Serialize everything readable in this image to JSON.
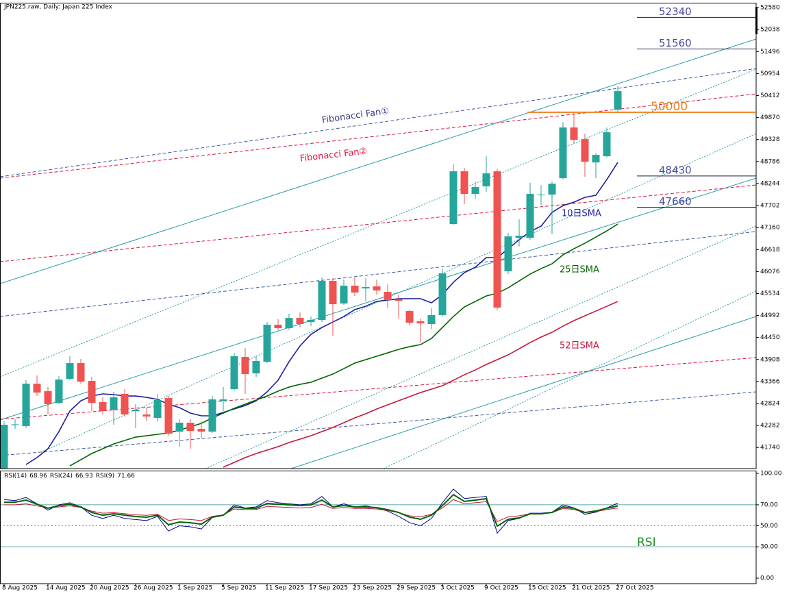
{
  "chart_data": [
    {
      "type": "candlestick",
      "title": "JPN225.raw, Daily:  Japan 225 Index",
      "categories": [
        "8 Aug 2025",
        null,
        null,
        null,
        "14 Aug 2025",
        null,
        null,
        null,
        "20 Aug 2025",
        null,
        null,
        null,
        "26 Aug 2025",
        null,
        null,
        null,
        "1 Sep 2025",
        null,
        null,
        null,
        "5 Sep 2025",
        null,
        null,
        null,
        "11 Sep 2025",
        null,
        null,
        null,
        "17 Sep 2025",
        null,
        null,
        null,
        "23 Sep 2025",
        null,
        null,
        null,
        "29 Sep 2025",
        null,
        null,
        null,
        "3 Oct 2025",
        null,
        null,
        null,
        "9 Oct 2025",
        null,
        null,
        null,
        "15 Oct 2025",
        null,
        null,
        null,
        "21 Oct 2025",
        null,
        null,
        null,
        "27 Oct 2025"
      ],
      "open": [
        41150,
        42290,
        42266,
        43313,
        43127,
        42840,
        43431,
        43819,
        43380,
        42857,
        42671,
        43060,
        42638,
        42553,
        42469,
        42958,
        42131,
        42351,
        42199,
        42131,
        42891,
        43178,
        43971,
        43566,
        43853,
        44765,
        44680,
        44933,
        44832,
        44883,
        45845,
        45288,
        45727,
        45659,
        45710,
        45575,
        45389,
        45102,
        44849,
        44782,
        45001,
        47246,
        48546,
        47989,
        48175,
        48546,
        46081,
        46908,
        46908,
        47955,
        47972,
        48377,
        49626,
        49339,
        48765,
        48917,
        50065
      ],
      "high": [
        42385,
        42435,
        43397,
        43515,
        43228,
        43498,
        43988,
        43920,
        43482,
        42975,
        43110,
        43178,
        42806,
        42722,
        43060,
        43009,
        42435,
        42435,
        42385,
        43009,
        43228,
        44072,
        44191,
        43988,
        44832,
        44900,
        45035,
        45068,
        44967,
        45929,
        45912,
        45878,
        45929,
        45912,
        45878,
        45760,
        45507,
        45136,
        44916,
        45170,
        46149,
        48715,
        48630,
        48293,
        48917,
        48613,
        47027,
        47364,
        48259,
        48208,
        48293,
        49761,
        49981,
        49474,
        49001,
        49626,
        50656
      ],
      "low": [
        41050,
        42200,
        42216,
        43009,
        42553,
        42806,
        43397,
        43313,
        42638,
        42553,
        42300,
        42503,
        42216,
        42385,
        42385,
        42030,
        41760,
        41709,
        41963,
        42098,
        42638,
        43144,
        43060,
        43482,
        43819,
        44630,
        44630,
        44697,
        44731,
        44832,
        44495,
        45254,
        45474,
        45338,
        45507,
        45170,
        44916,
        44748,
        44326,
        44663,
        44967,
        47229,
        47736,
        47871,
        48040,
        45119,
        46014,
        46689,
        46858,
        47702,
        46993,
        48343,
        49221,
        48411,
        48377,
        48883,
        49981
      ],
      "close": [
        42300,
        42310,
        43313,
        43093,
        42806,
        43414,
        43819,
        43364,
        42840,
        42638,
        42975,
        42553,
        42671,
        42503,
        42908,
        42081,
        42351,
        42148,
        42131,
        42925,
        42925,
        43988,
        43549,
        43870,
        44765,
        44680,
        44933,
        44782,
        44883,
        45845,
        45271,
        45727,
        45558,
        45693,
        45609,
        45372,
        45355,
        44815,
        44798,
        45001,
        46031,
        48546,
        47989,
        48158,
        48495,
        45187,
        46942,
        46959,
        47989,
        47972,
        48242,
        49626,
        49322,
        48782,
        48951,
        49508,
        50521
      ],
      "up_color": "#26a69a",
      "down_color": "#ef5350",
      "ylim": [
        41220,
        52700
      ],
      "yticks": [
        52580,
        52038,
        51496,
        50954,
        50412,
        49870,
        49328,
        48786,
        48244,
        47702,
        47160,
        46618,
        46076,
        45534,
        44992,
        44450,
        43908,
        43366,
        42824,
        42282,
        41740
      ],
      "series": [
        {
          "name": "10日SMA",
          "color": "#1e1e9c",
          "values": [
            null,
            null,
            41321,
            41490,
            41709,
            42131,
            42638,
            42891,
            43009,
            43060,
            43043,
            43009,
            43009,
            42975,
            42925,
            42806,
            42722,
            42587,
            42520,
            42520,
            42604,
            42688,
            42773,
            42891,
            43110,
            43397,
            43853,
            44242,
            44528,
            44697,
            44832,
            44967,
            45136,
            45221,
            45338,
            45372,
            45406,
            45406,
            45406,
            45305,
            45507,
            45811,
            46047,
            46182,
            46419,
            46419,
            46638,
            46858,
            47061,
            47195,
            47533,
            47702,
            47786,
            47904,
            47955,
            48343,
            48765
          ]
        },
        {
          "name": "25日SMA",
          "color": "#006400",
          "values": [
            null,
            null,
            null,
            null,
            null,
            null,
            41287,
            41439,
            41591,
            41709,
            41827,
            41912,
            41996,
            42030,
            42064,
            42098,
            42165,
            42249,
            42334,
            42469,
            42587,
            42705,
            42806,
            42908,
            43009,
            43127,
            43228,
            43296,
            43347,
            43448,
            43549,
            43684,
            43819,
            43904,
            43988,
            44072,
            44157,
            44224,
            44275,
            44427,
            44697,
            44967,
            45203,
            45338,
            45474,
            45541,
            45676,
            45845,
            46014,
            46149,
            46267,
            46486,
            46638,
            46773,
            46925,
            47077,
            47246
          ]
        },
        {
          "name": "52日SMA",
          "color": "#c8143c",
          "values": [
            null,
            null,
            null,
            null,
            null,
            null,
            null,
            null,
            null,
            null,
            null,
            null,
            null,
            null,
            null,
            null,
            null,
            null,
            null,
            null,
            41254,
            41372,
            41490,
            41591,
            41676,
            41760,
            41861,
            41946,
            42030,
            42131,
            42233,
            42351,
            42469,
            42570,
            42688,
            42790,
            42891,
            42992,
            43093,
            43178,
            43262,
            43397,
            43532,
            43650,
            43786,
            43904,
            44022,
            44174,
            44326,
            44461,
            44579,
            44731,
            44866,
            44984,
            45102,
            45220,
            45338
          ]
        }
      ],
      "levels": [
        52340,
        51560,
        48430,
        47660
      ],
      "level_color": "#4a4a9a",
      "key_level": {
        "value": 50000,
        "color": "#f08020"
      },
      "annotations": [
        {
          "text": "Fibonacci Fan①",
          "color": "#3c3c8c"
        },
        {
          "text": "Fibonacci Fan②",
          "color": "#dc143c"
        }
      ]
    },
    {
      "type": "line",
      "label": "RSI",
      "ylim": [
        -5.2,
        102.6
      ],
      "yticks": [
        {
          "value": 100,
          "label": "100.00"
        },
        {
          "value": 70,
          "label": "70.00"
        },
        {
          "value": 50,
          "label": "50.00"
        },
        {
          "value": 30,
          "label": "30.00"
        },
        {
          "value": 0,
          "label": "0.00"
        }
      ],
      "levels": [
        {
          "value": 70,
          "style": "solid"
        },
        {
          "value": 50,
          "style": "dashed"
        },
        {
          "value": 30,
          "style": "solid"
        }
      ],
      "series": [
        {
          "name": "RSI(14)",
          "color": "#006400",
          "values": [
            72.5,
            72.5,
            74.5,
            70.6,
            66.7,
            69.3,
            70.6,
            68.0,
            62.7,
            60.1,
            61.4,
            60.1,
            58.8,
            58.2,
            60.1,
            51.0,
            53.6,
            52.9,
            51.6,
            58.2,
            60.1,
            68.0,
            66.7,
            66.7,
            71.2,
            70.6,
            69.9,
            69.3,
            69.9,
            74.5,
            68.0,
            69.3,
            68.0,
            68.0,
            67.3,
            65.4,
            62.7,
            58.2,
            56.2,
            60.1,
            69.3,
            79.7,
            73.2,
            74.5,
            75.8,
            49.7,
            56.2,
            57.5,
            61.4,
            61.4,
            62.7,
            68.0,
            66.7,
            62.7,
            64.1,
            66.7,
            68.96
          ]
        },
        {
          "name": "RSI(24)",
          "color": "#c8143c",
          "values": [
            70,
            70,
            71,
            69,
            67,
            68,
            69,
            67.5,
            64,
            62,
            62.5,
            61.5,
            60.5,
            60,
            61,
            55,
            56.5,
            56,
            55,
            59,
            60.5,
            66,
            65.5,
            65.5,
            68.5,
            68,
            67.5,
            67,
            67.5,
            70.5,
            66.5,
            67.5,
            66.5,
            66.5,
            66,
            64.5,
            62.5,
            59.5,
            58.5,
            61,
            67,
            75,
            71,
            72,
            73,
            54,
            58.5,
            59.5,
            61.5,
            61.5,
            62.5,
            66.5,
            65.5,
            62.5,
            63.5,
            65.5,
            66.93
          ]
        },
        {
          "name": "RSI(9)",
          "color": "#00008b",
          "values": [
            75,
            74,
            77,
            71,
            65,
            70,
            72,
            68,
            60,
            57,
            60,
            57,
            56,
            55,
            59,
            45,
            50,
            49,
            47,
            58,
            60,
            70,
            67,
            68,
            74,
            72,
            71,
            70,
            71,
            78,
            68,
            71,
            68,
            69,
            67,
            64,
            59,
            53,
            50,
            57,
            72,
            85,
            76,
            77,
            78,
            43,
            55,
            57,
            62,
            62,
            63,
            70,
            67,
            61,
            63,
            67,
            71.66
          ]
        }
      ]
    }
  ]
}
